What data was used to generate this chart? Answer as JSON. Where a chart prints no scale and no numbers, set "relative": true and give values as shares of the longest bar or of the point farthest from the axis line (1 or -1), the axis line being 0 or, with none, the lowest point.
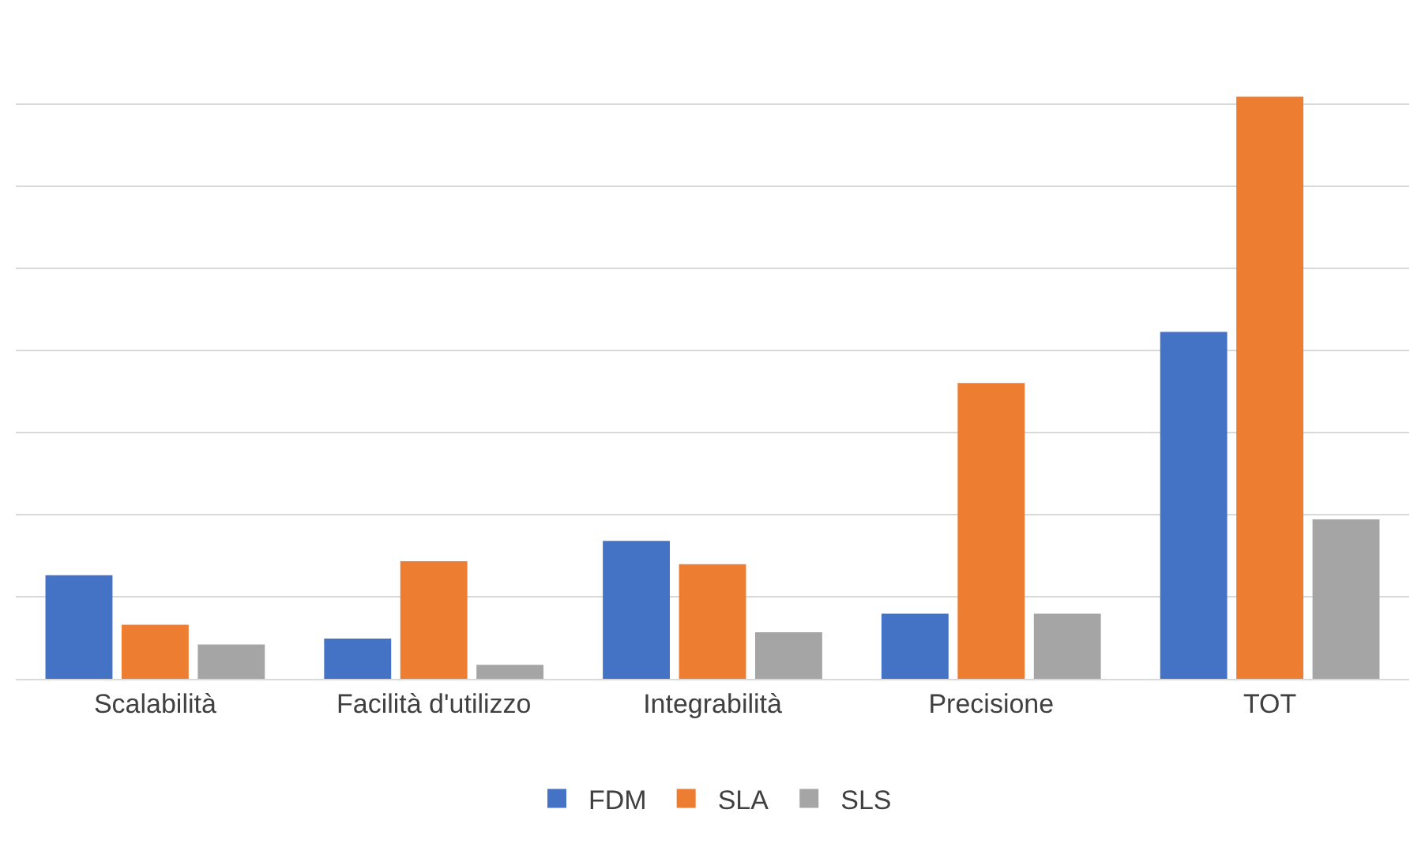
{
  "chart_data": {
    "type": "bar",
    "relative": true,
    "categories": [
      "Scalabilità",
      "Facilità d'utilizzo",
      "Integrabilità",
      "Precisione",
      "TOT"
    ],
    "series": [
      {
        "name": "FDM",
        "color": "#4472c4",
        "values": [
          0.178,
          0.069,
          0.237,
          0.112,
          0.596
        ]
      },
      {
        "name": "SLA",
        "color": "#ed7d31",
        "values": [
          0.093,
          0.202,
          0.197,
          0.508,
          1
        ]
      },
      {
        "name": "SLS",
        "color": "#a5a5a5",
        "values": [
          0.059,
          0.024,
          0.08,
          0.112,
          0.274
        ]
      }
    ],
    "grid": "y",
    "legend": "bottom"
  }
}
